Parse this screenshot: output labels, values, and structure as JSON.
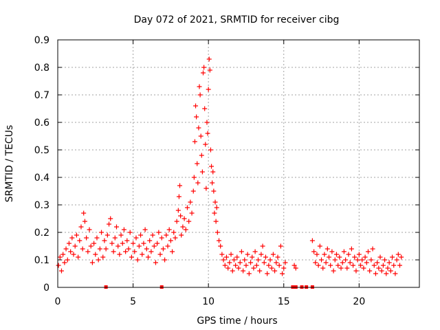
{
  "chart_data": {
    "type": "scatter",
    "title": "Day 072 of 2021, SRMTID for receiver cibg",
    "xlabel": "GPS time / hours",
    "ylabel": "SRMTID / TECUs",
    "xlim": [
      0,
      24
    ],
    "ylim": [
      0,
      0.9
    ],
    "xticks": [
      0,
      5,
      10,
      15,
      20
    ],
    "xtick_labels": [
      "0",
      "5",
      "10",
      "15",
      "20"
    ],
    "yticks": [
      0,
      0.1,
      0.2,
      0.3,
      0.4,
      0.5,
      0.6,
      0.7,
      0.8,
      0.9
    ],
    "ytick_labels": [
      "0",
      "0.1",
      "0.2",
      "0.3",
      "0.4",
      "0.5",
      "0.6",
      "0.7",
      "0.8",
      "0.9"
    ],
    "grid": true,
    "legend": "none",
    "series": [
      {
        "name": "SRMTID",
        "color": "#ff0000",
        "marker": "plus",
        "points": [
          [
            0.05,
            0.08
          ],
          [
            0.15,
            0.11
          ],
          [
            0.25,
            0.06
          ],
          [
            0.35,
            0.12
          ],
          [
            0.45,
            0.09
          ],
          [
            0.55,
            0.14
          ],
          [
            0.65,
            0.1
          ],
          [
            0.75,
            0.16
          ],
          [
            0.85,
            0.13
          ],
          [
            0.95,
            0.18
          ],
          [
            1.05,
            0.12
          ],
          [
            1.15,
            0.15
          ],
          [
            1.25,
            0.19
          ],
          [
            1.35,
            0.11
          ],
          [
            1.45,
            0.17
          ],
          [
            1.55,
            0.22
          ],
          [
            1.65,
            0.14
          ],
          [
            1.72,
            0.27
          ],
          [
            1.8,
            0.24
          ],
          [
            1.9,
            0.18
          ],
          [
            2.0,
            0.13
          ],
          [
            2.1,
            0.21
          ],
          [
            2.2,
            0.15
          ],
          [
            2.3,
            0.09
          ],
          [
            2.4,
            0.16
          ],
          [
            2.5,
            0.12
          ],
          [
            2.6,
            0.18
          ],
          [
            2.7,
            0.1
          ],
          [
            2.8,
            0.14
          ],
          [
            2.9,
            0.2
          ],
          [
            3.0,
            0.11
          ],
          [
            3.1,
            0.17
          ],
          [
            3.2,
            0.14
          ],
          [
            3.3,
            0.19
          ],
          [
            3.4,
            0.23
          ],
          [
            3.5,
            0.25
          ],
          [
            3.6,
            0.16
          ],
          [
            3.7,
            0.13
          ],
          [
            3.8,
            0.18
          ],
          [
            3.9,
            0.22
          ],
          [
            4.0,
            0.15
          ],
          [
            4.1,
            0.12
          ],
          [
            4.2,
            0.19
          ],
          [
            4.3,
            0.16
          ],
          [
            4.4,
            0.21
          ],
          [
            4.5,
            0.13
          ],
          [
            4.6,
            0.17
          ],
          [
            4.7,
            0.14
          ],
          [
            4.8,
            0.2
          ],
          [
            4.9,
            0.11
          ],
          [
            5.0,
            0.16
          ],
          [
            5.1,
            0.13
          ],
          [
            5.2,
            0.18
          ],
          [
            5.3,
            0.1
          ],
          [
            5.4,
            0.15
          ],
          [
            5.5,
            0.19
          ],
          [
            5.6,
            0.12
          ],
          [
            5.7,
            0.16
          ],
          [
            5.8,
            0.21
          ],
          [
            5.9,
            0.14
          ],
          [
            6.0,
            0.11
          ],
          [
            6.1,
            0.17
          ],
          [
            6.2,
            0.13
          ],
          [
            6.3,
            0.19
          ],
          [
            6.4,
            0.15
          ],
          [
            6.5,
            0.09
          ],
          [
            6.6,
            0.16
          ],
          [
            6.7,
            0.2
          ],
          [
            6.8,
            0.12
          ],
          [
            6.9,
            0.18
          ],
          [
            7.0,
            0.14
          ],
          [
            7.1,
            0.1
          ],
          [
            7.2,
            0.19
          ],
          [
            7.3,
            0.15
          ],
          [
            7.4,
            0.21
          ],
          [
            7.5,
            0.17
          ],
          [
            7.6,
            0.13
          ],
          [
            7.7,
            0.2
          ],
          [
            7.8,
            0.18
          ],
          [
            7.9,
            0.24
          ],
          [
            8.0,
            0.28
          ],
          [
            8.05,
            0.33
          ],
          [
            8.1,
            0.37
          ],
          [
            8.15,
            0.26
          ],
          [
            8.2,
            0.19
          ],
          [
            8.3,
            0.22
          ],
          [
            8.4,
            0.25
          ],
          [
            8.5,
            0.21
          ],
          [
            8.6,
            0.29
          ],
          [
            8.7,
            0.24
          ],
          [
            8.8,
            0.31
          ],
          [
            8.9,
            0.27
          ],
          [
            9.0,
            0.35
          ],
          [
            9.05,
            0.4
          ],
          [
            9.1,
            0.53
          ],
          [
            9.15,
            0.66
          ],
          [
            9.2,
            0.62
          ],
          [
            9.25,
            0.45
          ],
          [
            9.3,
            0.38
          ],
          [
            9.35,
            0.58
          ],
          [
            9.4,
            0.73
          ],
          [
            9.45,
            0.7
          ],
          [
            9.5,
            0.55
          ],
          [
            9.55,
            0.48
          ],
          [
            9.6,
            0.42
          ],
          [
            9.65,
            0.78
          ],
          [
            9.7,
            0.8
          ],
          [
            9.75,
            0.65
          ],
          [
            9.8,
            0.52
          ],
          [
            9.85,
            0.36
          ],
          [
            9.9,
            0.6
          ],
          [
            9.95,
            0.56
          ],
          [
            10.0,
            0.72
          ],
          [
            10.05,
            0.83
          ],
          [
            10.1,
            0.79
          ],
          [
            10.15,
            0.5
          ],
          [
            10.2,
            0.44
          ],
          [
            10.25,
            0.38
          ],
          [
            10.3,
            0.42
          ],
          [
            10.35,
            0.35
          ],
          [
            10.4,
            0.27
          ],
          [
            10.45,
            0.31
          ],
          [
            10.5,
            0.24
          ],
          [
            10.55,
            0.29
          ],
          [
            10.6,
            0.2
          ],
          [
            10.7,
            0.17
          ],
          [
            10.8,
            0.15
          ],
          [
            10.9,
            0.12
          ],
          [
            11.0,
            0.1
          ],
          [
            11.1,
            0.08
          ],
          [
            11.2,
            0.11
          ],
          [
            11.3,
            0.07
          ],
          [
            11.4,
            0.09
          ],
          [
            11.5,
            0.12
          ],
          [
            11.6,
            0.06
          ],
          [
            11.7,
            0.1
          ],
          [
            11.8,
            0.08
          ],
          [
            11.9,
            0.11
          ],
          [
            12.0,
            0.07
          ],
          [
            12.1,
            0.09
          ],
          [
            12.2,
            0.13
          ],
          [
            12.3,
            0.06
          ],
          [
            12.4,
            0.1
          ],
          [
            12.5,
            0.08
          ],
          [
            12.6,
            0.12
          ],
          [
            12.7,
            0.05
          ],
          [
            12.8,
            0.09
          ],
          [
            12.9,
            0.11
          ],
          [
            13.0,
            0.07
          ],
          [
            13.1,
            0.13
          ],
          [
            13.2,
            0.08
          ],
          [
            13.3,
            0.1
          ],
          [
            13.4,
            0.06
          ],
          [
            13.5,
            0.12
          ],
          [
            13.6,
            0.15
          ],
          [
            13.7,
            0.09
          ],
          [
            13.8,
            0.11
          ],
          [
            13.9,
            0.05
          ],
          [
            14.0,
            0.08
          ],
          [
            14.1,
            0.1
          ],
          [
            14.2,
            0.07
          ],
          [
            14.3,
            0.12
          ],
          [
            14.4,
            0.06
          ],
          [
            14.5,
            0.09
          ],
          [
            14.6,
            0.11
          ],
          [
            14.7,
            0.08
          ],
          [
            14.8,
            0.15
          ],
          [
            14.9,
            0.05
          ],
          [
            15.0,
            0.07
          ],
          [
            15.1,
            0.09
          ],
          [
            15.7,
            0.08
          ],
          [
            15.8,
            0.07
          ],
          [
            16.9,
            0.17
          ],
          [
            17.0,
            0.13
          ],
          [
            17.1,
            0.09
          ],
          [
            17.2,
            0.12
          ],
          [
            17.3,
            0.08
          ],
          [
            17.4,
            0.15
          ],
          [
            17.5,
            0.1
          ],
          [
            17.6,
            0.07
          ],
          [
            17.7,
            0.12
          ],
          [
            17.8,
            0.09
          ],
          [
            17.9,
            0.14
          ],
          [
            18.0,
            0.11
          ],
          [
            18.1,
            0.08
          ],
          [
            18.2,
            0.13
          ],
          [
            18.3,
            0.06
          ],
          [
            18.4,
            0.1
          ],
          [
            18.5,
            0.12
          ],
          [
            18.6,
            0.08
          ],
          [
            18.7,
            0.11
          ],
          [
            18.8,
            0.07
          ],
          [
            18.9,
            0.09
          ],
          [
            19.0,
            0.13
          ],
          [
            19.1,
            0.1
          ],
          [
            19.2,
            0.07
          ],
          [
            19.3,
            0.12
          ],
          [
            19.4,
            0.09
          ],
          [
            19.5,
            0.14
          ],
          [
            19.6,
            0.08
          ],
          [
            19.7,
            0.11
          ],
          [
            19.8,
            0.06
          ],
          [
            19.9,
            0.1
          ],
          [
            20.0,
            0.12
          ],
          [
            20.1,
            0.08
          ],
          [
            20.2,
            0.1
          ],
          [
            20.3,
            0.07
          ],
          [
            20.4,
            0.11
          ],
          [
            20.5,
            0.09
          ],
          [
            20.6,
            0.13
          ],
          [
            20.7,
            0.06
          ],
          [
            20.8,
            0.1
          ],
          [
            20.9,
            0.14
          ],
          [
            21.0,
            0.08
          ],
          [
            21.1,
            0.05
          ],
          [
            21.2,
            0.09
          ],
          [
            21.3,
            0.07
          ],
          [
            21.4,
            0.11
          ],
          [
            21.5,
            0.06
          ],
          [
            21.6,
            0.08
          ],
          [
            21.7,
            0.1
          ],
          [
            21.8,
            0.05
          ],
          [
            21.9,
            0.07
          ],
          [
            22.0,
            0.09
          ],
          [
            22.1,
            0.06
          ],
          [
            22.2,
            0.11
          ],
          [
            22.3,
            0.08
          ],
          [
            22.4,
            0.05
          ],
          [
            22.5,
            0.1
          ],
          [
            22.6,
            0.12
          ],
          [
            22.7,
            0.08
          ],
          [
            22.8,
            0.11
          ]
        ]
      }
    ],
    "gap_markers": [
      3.2,
      6.9,
      15.6,
      15.8,
      16.2,
      16.5,
      16.9
    ]
  }
}
